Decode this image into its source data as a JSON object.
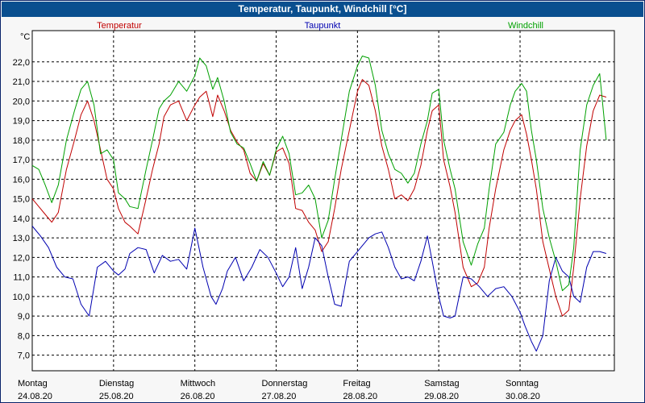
{
  "window": {
    "title": "Temperatur, Taupunkt, Windchill [°C]"
  },
  "chart_data": {
    "type": "line",
    "title": "Temperatur, Taupunkt, Windchill [°C]",
    "ylabel": "°C",
    "ylim": [
      6.2,
      23.6
    ],
    "yticks": [
      7,
      8,
      9,
      10,
      11,
      12,
      13,
      14,
      15,
      16,
      17,
      18,
      19,
      20,
      21,
      22
    ],
    "ytick_labels": [
      "7,0",
      "8,0",
      "9,0",
      "10,0",
      "11,0",
      "12,0",
      "13,0",
      "14,0",
      "15,0",
      "16,0",
      "17,0",
      "18,0",
      "19,0",
      "20,0",
      "21,0",
      "22,0"
    ],
    "xlim": [
      0,
      7.16
    ],
    "days": [
      {
        "name": "Montag",
        "date": "24.08.20"
      },
      {
        "name": "Dienstag",
        "date": "25.08.20"
      },
      {
        "name": "Mittwoch",
        "date": "26.08.20"
      },
      {
        "name": "Donnerstag",
        "date": "27.08.20"
      },
      {
        "name": "Freitag",
        "date": "28.08.20"
      },
      {
        "name": "Samstag",
        "date": "29.08.20"
      },
      {
        "name": "Sonntag",
        "date": "30.08.20"
      }
    ],
    "grid": true,
    "series": [
      {
        "name": "Temperatur",
        "color": "#c00000",
        "x": [
          0,
          0.08,
          0.16,
          0.24,
          0.32,
          0.42,
          0.52,
          0.6,
          0.68,
          0.76,
          0.84,
          0.92,
          1.0,
          1.06,
          1.14,
          1.2,
          1.3,
          1.4,
          1.48,
          1.56,
          1.62,
          1.7,
          1.8,
          1.9,
          2.0,
          2.06,
          2.14,
          2.22,
          2.28,
          2.36,
          2.44,
          2.52,
          2.6,
          2.68,
          2.76,
          2.84,
          2.92,
          3.0,
          3.08,
          3.16,
          3.24,
          3.32,
          3.4,
          3.48,
          3.56,
          3.64,
          3.72,
          3.8,
          3.9,
          4.0,
          4.06,
          4.14,
          4.22,
          4.3,
          4.38,
          4.46,
          4.54,
          4.62,
          4.7,
          4.78,
          4.86,
          4.92,
          5.0,
          5.06,
          5.14,
          5.2,
          5.3,
          5.4,
          5.48,
          5.56,
          5.62,
          5.7,
          5.8,
          5.88,
          5.94,
          6.02,
          6.08,
          6.14,
          6.2,
          6.28,
          6.36,
          6.44,
          6.52,
          6.6,
          6.66,
          6.74,
          6.82,
          6.9,
          6.98,
          7.06
        ],
        "values": [
          15.0,
          14.6,
          14.2,
          13.8,
          14.3,
          16.5,
          18.0,
          19.3,
          20.0,
          19.0,
          17.5,
          16.0,
          15.5,
          14.5,
          13.8,
          13.6,
          13.2,
          15.0,
          16.5,
          17.8,
          19.2,
          19.8,
          20.0,
          19.0,
          19.8,
          20.2,
          20.5,
          19.2,
          20.3,
          19.5,
          18.5,
          17.9,
          17.5,
          16.3,
          15.9,
          16.8,
          16.2,
          17.4,
          17.6,
          16.8,
          14.5,
          14.4,
          13.8,
          13.4,
          12.3,
          12.8,
          14.5,
          16.5,
          18.5,
          20.5,
          21.1,
          20.8,
          19.5,
          17.7,
          16.5,
          15.0,
          15.2,
          14.9,
          15.5,
          16.7,
          18.5,
          19.5,
          19.8,
          17.0,
          15.6,
          14.3,
          11.5,
          10.5,
          10.7,
          11.5,
          13.5,
          15.5,
          17.5,
          18.5,
          19.0,
          19.3,
          18.3,
          17.0,
          15.5,
          12.8,
          11.4,
          10.0,
          9.0,
          9.3,
          11.5,
          15.0,
          17.7,
          19.5,
          20.3,
          20.2
        ]
      },
      {
        "name": "Taupunkt",
        "color": "#0000b0",
        "x": [
          0,
          0.1,
          0.2,
          0.3,
          0.4,
          0.5,
          0.6,
          0.7,
          0.8,
          0.9,
          1.0,
          1.06,
          1.14,
          1.2,
          1.3,
          1.4,
          1.5,
          1.6,
          1.7,
          1.8,
          1.9,
          2.0,
          2.1,
          2.2,
          2.26,
          2.34,
          2.4,
          2.5,
          2.6,
          2.7,
          2.8,
          2.9,
          3.0,
          3.08,
          3.16,
          3.24,
          3.32,
          3.4,
          3.48,
          3.56,
          3.64,
          3.72,
          3.8,
          3.9,
          4.0,
          4.06,
          4.14,
          4.22,
          4.3,
          4.38,
          4.46,
          4.54,
          4.62,
          4.7,
          4.78,
          4.86,
          4.92,
          5.0,
          5.06,
          5.14,
          5.2,
          5.3,
          5.4,
          5.5,
          5.6,
          5.7,
          5.8,
          5.9,
          6.0,
          6.06,
          6.14,
          6.2,
          6.28,
          6.36,
          6.44,
          6.52,
          6.6,
          6.66,
          6.74,
          6.82,
          6.9,
          6.98,
          7.06
        ],
        "values": [
          13.6,
          13.1,
          12.5,
          11.5,
          11.0,
          10.9,
          9.6,
          9.0,
          11.5,
          11.8,
          11.3,
          11.1,
          11.4,
          12.2,
          12.5,
          12.4,
          11.2,
          12.1,
          11.8,
          11.9,
          11.4,
          13.5,
          11.5,
          10.0,
          9.6,
          10.4,
          11.3,
          12.0,
          10.8,
          11.5,
          12.4,
          12.0,
          11.2,
          10.5,
          11.0,
          12.5,
          10.4,
          11.5,
          13.0,
          12.6,
          11.0,
          9.6,
          9.5,
          11.8,
          12.3,
          12.6,
          13.0,
          13.2,
          13.3,
          12.5,
          11.5,
          10.9,
          11.0,
          10.8,
          11.8,
          13.1,
          11.8,
          10.0,
          9.0,
          8.9,
          9.0,
          11.0,
          10.9,
          10.5,
          10.0,
          10.4,
          10.5,
          10.0,
          9.2,
          8.5,
          7.7,
          7.2,
          8.0,
          10.8,
          12.0,
          11.3,
          11.0,
          10.0,
          9.7,
          11.5,
          12.3,
          12.3,
          12.2
        ]
      },
      {
        "name": "Windchill",
        "color": "#00a000",
        "x": [
          0,
          0.08,
          0.16,
          0.24,
          0.32,
          0.42,
          0.52,
          0.6,
          0.68,
          0.76,
          0.84,
          0.92,
          1.0,
          1.06,
          1.14,
          1.2,
          1.3,
          1.4,
          1.48,
          1.56,
          1.62,
          1.7,
          1.8,
          1.9,
          2.0,
          2.06,
          2.14,
          2.22,
          2.28,
          2.36,
          2.44,
          2.52,
          2.6,
          2.68,
          2.76,
          2.84,
          2.92,
          3.0,
          3.08,
          3.16,
          3.24,
          3.32,
          3.4,
          3.48,
          3.56,
          3.64,
          3.72,
          3.8,
          3.9,
          4.0,
          4.06,
          4.14,
          4.22,
          4.3,
          4.38,
          4.46,
          4.54,
          4.62,
          4.7,
          4.78,
          4.86,
          4.92,
          5.0,
          5.06,
          5.14,
          5.2,
          5.3,
          5.4,
          5.48,
          5.56,
          5.62,
          5.7,
          5.8,
          5.88,
          5.94,
          6.02,
          6.08,
          6.14,
          6.2,
          6.28,
          6.36,
          6.44,
          6.52,
          6.6,
          6.66,
          6.74,
          6.82,
          6.9,
          6.98,
          7.06
        ],
        "values": [
          16.7,
          16.5,
          15.7,
          14.8,
          15.7,
          18.0,
          19.5,
          20.6,
          21.0,
          19.8,
          17.3,
          17.5,
          17.0,
          15.3,
          15.0,
          14.6,
          14.5,
          16.5,
          18.0,
          19.6,
          20.0,
          20.3,
          21.0,
          20.5,
          21.3,
          22.2,
          21.8,
          20.6,
          21.2,
          20.0,
          18.4,
          17.8,
          17.6,
          16.8,
          15.9,
          16.9,
          16.2,
          17.5,
          18.2,
          17.3,
          15.2,
          15.3,
          15.7,
          15.0,
          13.0,
          13.9,
          16.0,
          18.0,
          20.5,
          21.8,
          22.3,
          22.2,
          20.8,
          18.5,
          17.3,
          16.5,
          16.3,
          15.8,
          16.3,
          17.8,
          19.0,
          20.4,
          20.6,
          18.0,
          16.5,
          15.5,
          12.8,
          11.6,
          12.7,
          13.5,
          15.5,
          17.8,
          18.4,
          19.8,
          20.5,
          20.9,
          20.5,
          18.5,
          17.0,
          14.5,
          13.0,
          11.8,
          10.3,
          10.6,
          12.5,
          17.5,
          19.8,
          20.8,
          21.4,
          18.0
        ]
      }
    ]
  }
}
